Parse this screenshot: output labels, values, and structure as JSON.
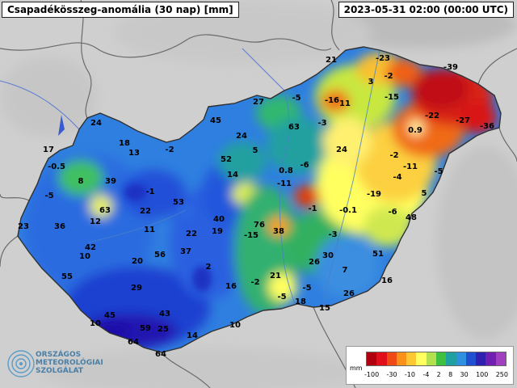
{
  "header": {
    "title": "Csapadékösszeg-anomália (30 nap) [mm]",
    "timestamp": "2023-05-31 02:00 (00:00 UTC)"
  },
  "logo": {
    "line1": "ORSZÁGOS",
    "line2": "METEOROLÓGIAI",
    "line3": "SZOLGÁLAT"
  },
  "legend": {
    "unit": "mm",
    "labels": [
      "-100",
      "-30",
      "-10",
      "-4",
      "2",
      "8",
      "30",
      "100",
      "250"
    ],
    "colors": [
      "#b00010",
      "#e0101a",
      "#f04a14",
      "#f8901a",
      "#fcc832",
      "#ffff60",
      "#b4e050",
      "#40c040",
      "#20a0a0",
      "#3090e0",
      "#2050d0",
      "#3020b0",
      "#7020b0",
      "#a040c0"
    ]
  },
  "map_values": [
    "21",
    "-23",
    "-2",
    "3",
    "-15",
    "-39",
    "-22",
    "-27",
    "-36",
    "0.9",
    "-5",
    "-16",
    "11",
    "27",
    "45",
    "-3",
    "63",
    "24",
    "-2",
    "24",
    "18",
    "13",
    "17",
    "-0.5",
    "8",
    "39",
    "-5",
    "63",
    "-1",
    "12",
    "36",
    "23",
    "53",
    "22",
    "11",
    "52",
    "5",
    "14",
    "0.8",
    "-6",
    "24",
    "-11",
    "-2",
    "-11",
    "-4",
    "-5",
    "5",
    "-19",
    "-1",
    "-0.1",
    "-6",
    "48",
    "40",
    "76",
    "19",
    "-15",
    "38",
    "22",
    "-3",
    "51",
    "42",
    "10",
    "20",
    "56",
    "37",
    "2",
    "-2",
    "21",
    "26",
    "30",
    "7",
    "55",
    "29",
    "16",
    "16",
    "-5",
    "-5",
    "18",
    "15",
    "26",
    "43",
    "45",
    "10",
    "59",
    "25",
    "14",
    "64",
    "64",
    "10"
  ]
}
